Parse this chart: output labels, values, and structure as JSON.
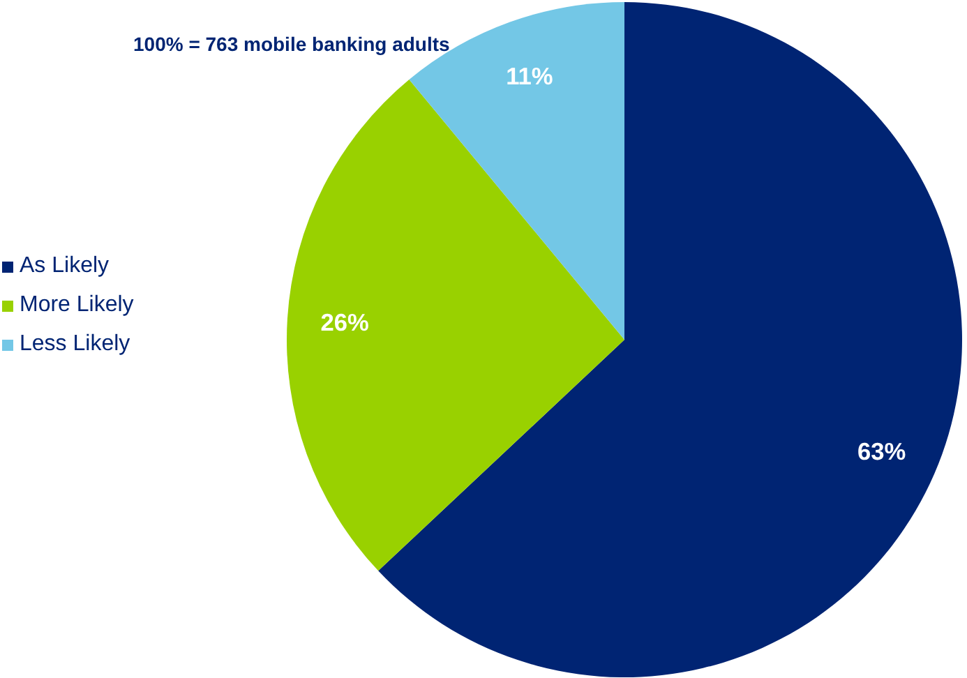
{
  "chart_data": {
    "type": "pie",
    "title": "100% = 763 mobile banking adults",
    "categories": [
      "As Likely",
      "More Likely",
      "Less Likely"
    ],
    "values": [
      63,
      26,
      11
    ],
    "colors": [
      "#002473",
      "#99d100",
      "#73c7e6"
    ],
    "value_labels": [
      "63%",
      "26%",
      "11%"
    ],
    "legend": "left"
  }
}
